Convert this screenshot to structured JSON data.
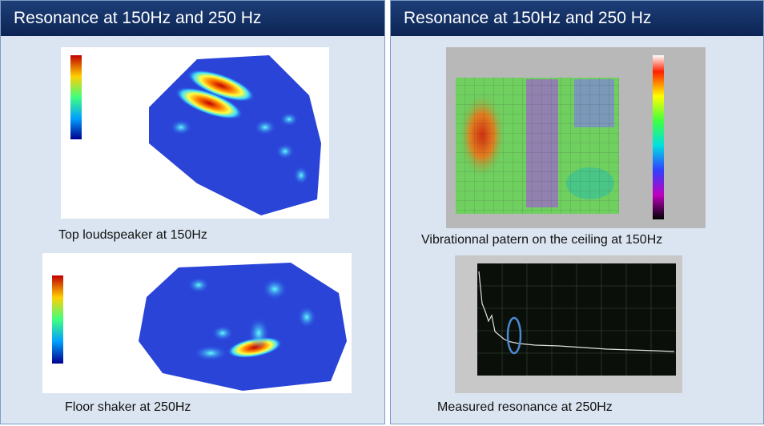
{
  "panels": [
    {
      "title": "Resonance at 150Hz and 250 Hz",
      "figures": [
        {
          "caption": "Top loudspeaker at 150Hz"
        },
        {
          "caption": "Floor shaker at 250Hz"
        }
      ]
    },
    {
      "title": "Resonance at 150Hz and 250 Hz",
      "figures": [
        {
          "caption": "Vibrationnal patern on the ceiling at 150Hz"
        },
        {
          "caption": "Measured resonance at  250Hz"
        }
      ]
    }
  ]
}
